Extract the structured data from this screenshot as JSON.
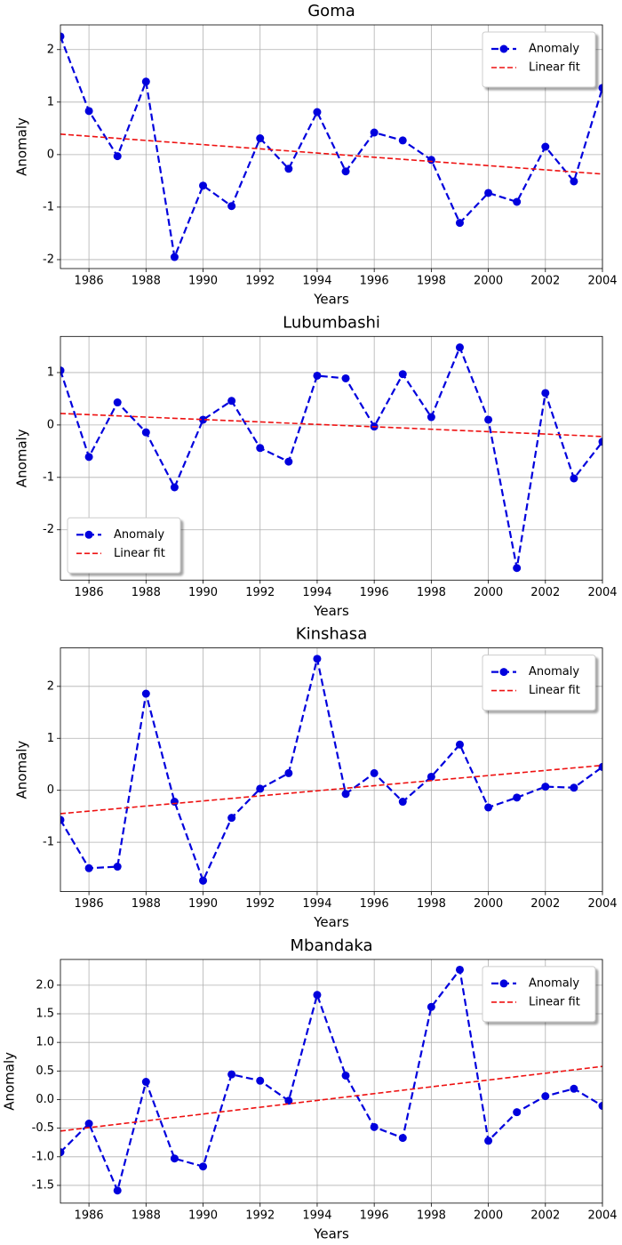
{
  "chart_data": [
    {
      "type": "line",
      "title": "Goma",
      "xlabel": "Years",
      "ylabel": "Anomaly",
      "x": [
        1985,
        1986,
        1987,
        1988,
        1989,
        1990,
        1991,
        1992,
        1993,
        1994,
        1995,
        1996,
        1997,
        1998,
        1999,
        2000,
        2001,
        2002,
        2003,
        2004
      ],
      "series": [
        {
          "name": "Anomaly",
          "color": "#0000dd",
          "values": [
            2.25,
            0.83,
            -0.03,
            1.39,
            -1.95,
            -0.59,
            -0.98,
            0.31,
            -0.27,
            0.81,
            -0.32,
            0.42,
            0.27,
            -0.1,
            -1.3,
            -0.73,
            -0.9,
            0.15,
            -0.51,
            1.27
          ]
        },
        {
          "name": "Linear fit",
          "color": "#ee1111",
          "x": [
            1985,
            2004
          ],
          "values": [
            0.39,
            -0.37
          ]
        }
      ],
      "xlim": [
        1985,
        2004
      ],
      "xticks": [
        1986,
        1988,
        1990,
        1992,
        1994,
        1996,
        1998,
        2000,
        2002,
        2004
      ],
      "ylim": [
        -2.17,
        2.47
      ],
      "yticks": [
        -2,
        -1,
        0,
        1,
        2
      ],
      "grid": true,
      "legend": "upper right"
    },
    {
      "type": "line",
      "title": "Lubumbashi",
      "xlabel": "Years",
      "ylabel": "Anomaly",
      "x": [
        1985,
        1986,
        1987,
        1988,
        1989,
        1990,
        1991,
        1992,
        1993,
        1994,
        1995,
        1996,
        1997,
        1998,
        1999,
        2000,
        2001,
        2002,
        2003,
        2004
      ],
      "series": [
        {
          "name": "Anomaly",
          "color": "#0000dd",
          "values": [
            1.04,
            -0.61,
            0.43,
            -0.14,
            -1.19,
            0.1,
            0.46,
            -0.44,
            -0.7,
            0.94,
            0.89,
            -0.03,
            0.97,
            0.15,
            1.48,
            0.1,
            -2.73,
            0.61,
            -1.02,
            -0.32
          ]
        },
        {
          "name": "Linear fit",
          "color": "#ee1111",
          "x": [
            1985,
            2004
          ],
          "values": [
            0.22,
            -0.22
          ]
        }
      ],
      "xlim": [
        1985,
        2004
      ],
      "xticks": [
        1986,
        1988,
        1990,
        1992,
        1994,
        1996,
        1998,
        2000,
        2002,
        2004
      ],
      "ylim": [
        -2.96,
        1.69
      ],
      "yticks": [
        -2,
        -1,
        0,
        1
      ],
      "grid": true,
      "legend": "lower left"
    },
    {
      "type": "line",
      "title": "Kinshasa",
      "xlabel": "Years",
      "ylabel": "Anomaly",
      "x": [
        1985,
        1986,
        1987,
        1988,
        1989,
        1990,
        1991,
        1992,
        1993,
        1994,
        1995,
        1996,
        1997,
        1998,
        1999,
        2000,
        2001,
        2002,
        2003,
        2004
      ],
      "series": [
        {
          "name": "Anomaly",
          "color": "#0000dd",
          "values": [
            -0.57,
            -1.5,
            -1.47,
            1.86,
            -0.22,
            -1.74,
            -0.53,
            0.03,
            0.33,
            2.53,
            -0.07,
            0.33,
            -0.22,
            0.26,
            0.88,
            -0.33,
            -0.14,
            0.07,
            0.05,
            0.45
          ]
        },
        {
          "name": "Linear fit",
          "color": "#ee1111",
          "x": [
            1985,
            2004
          ],
          "values": [
            -0.45,
            0.48
          ]
        }
      ],
      "xlim": [
        1985,
        2004
      ],
      "xticks": [
        1986,
        1988,
        1990,
        1992,
        1994,
        1996,
        1998,
        2000,
        2002,
        2004
      ],
      "ylim": [
        -1.95,
        2.74
      ],
      "yticks": [
        -1,
        0,
        1,
        2
      ],
      "grid": true,
      "legend": "upper right"
    },
    {
      "type": "line",
      "title": "Mbandaka",
      "xlabel": "Years",
      "ylabel": "Anomaly",
      "x": [
        1985,
        1986,
        1987,
        1988,
        1989,
        1990,
        1991,
        1992,
        1993,
        1994,
        1995,
        1996,
        1997,
        1998,
        1999,
        2000,
        2001,
        2002,
        2003,
        2004
      ],
      "series": [
        {
          "name": "Anomaly",
          "color": "#0000dd",
          "values": [
            -0.92,
            -0.42,
            -1.59,
            0.31,
            -1.03,
            -1.17,
            0.44,
            0.33,
            -0.02,
            1.83,
            0.42,
            -0.48,
            -0.67,
            1.62,
            2.27,
            -0.72,
            -0.22,
            0.06,
            0.19,
            -0.11
          ]
        },
        {
          "name": "Linear fit",
          "color": "#ee1111",
          "x": [
            1985,
            2004
          ],
          "values": [
            -0.55,
            0.58
          ]
        }
      ],
      "xlim": [
        1985,
        2004
      ],
      "xticks": [
        1986,
        1988,
        1990,
        1992,
        1994,
        1996,
        1998,
        2000,
        2002,
        2004
      ],
      "ylim": [
        -1.81,
        2.45
      ],
      "yticks": [
        -1.5,
        {
          "value": -1,
          "label": "-1.0"
        },
        -0.5,
        {
          "value": 0,
          "label": "0.0"
        },
        0.5,
        {
          "value": 1,
          "label": "1.0"
        },
        1.5,
        {
          "value": 2,
          "label": "2.0"
        }
      ],
      "grid": true,
      "legend": "upper right"
    }
  ]
}
